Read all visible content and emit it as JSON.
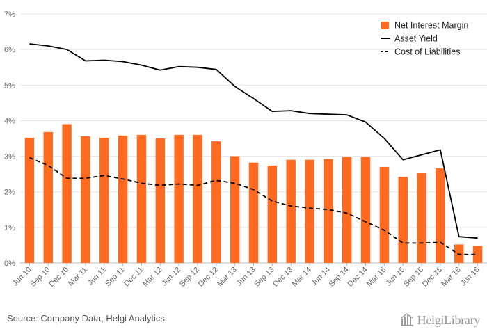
{
  "chart_data": {
    "type": "bar",
    "categories": [
      "Jun 10",
      "Sep 10",
      "Dec 10",
      "Mar 11",
      "Jun 11",
      "Sep 11",
      "Dec 11",
      "Mar 12",
      "Jun 12",
      "Sep 12",
      "Dec 12",
      "Mar 13",
      "Jun 13",
      "Sep 13",
      "Dec 13",
      "Mar 14",
      "Jun 14",
      "Sep 14",
      "Dec 14",
      "Mar 15",
      "Jun 15",
      "Sep 15",
      "Dec 15",
      "Mar 16",
      "Jun 16"
    ],
    "y_ticks": [
      "0%",
      "1%",
      "2%",
      "3%",
      "4%",
      "5%",
      "6%",
      "7%"
    ],
    "ylim": [
      0,
      7
    ],
    "grid": true,
    "legend_position": "top-right",
    "series": [
      {
        "name": "Net Interest Margin",
        "type": "bar",
        "color": "#ff6a21",
        "values": [
          3.52,
          3.68,
          3.9,
          3.56,
          3.52,
          3.58,
          3.6,
          3.5,
          3.6,
          3.6,
          3.42,
          3.0,
          2.82,
          2.74,
          2.9,
          2.9,
          2.92,
          2.98,
          2.98,
          2.7,
          2.42,
          2.54,
          2.66,
          0.52,
          0.48
        ]
      },
      {
        "name": "Asset Yield",
        "type": "line",
        "style": "solid",
        "color": "#000000",
        "values": [
          6.16,
          6.1,
          6.0,
          5.68,
          5.7,
          5.66,
          5.56,
          5.42,
          5.52,
          5.5,
          5.44,
          4.96,
          4.62,
          4.26,
          4.28,
          4.2,
          4.18,
          4.16,
          3.96,
          3.5,
          2.9,
          3.04,
          3.18,
          0.74,
          0.7
        ]
      },
      {
        "name": "Cost of Liabilities",
        "type": "line",
        "style": "dashed",
        "color": "#000000",
        "values": [
          2.96,
          2.74,
          2.38,
          2.38,
          2.46,
          2.36,
          2.24,
          2.18,
          2.22,
          2.18,
          2.32,
          2.24,
          2.06,
          1.74,
          1.6,
          1.54,
          1.5,
          1.4,
          1.16,
          0.92,
          0.56,
          0.56,
          0.58,
          0.24,
          0.24
        ]
      }
    ]
  },
  "footer": {
    "source": "Source: Company Data, Helgi Analytics",
    "brand": "HelgiLibrary"
  }
}
